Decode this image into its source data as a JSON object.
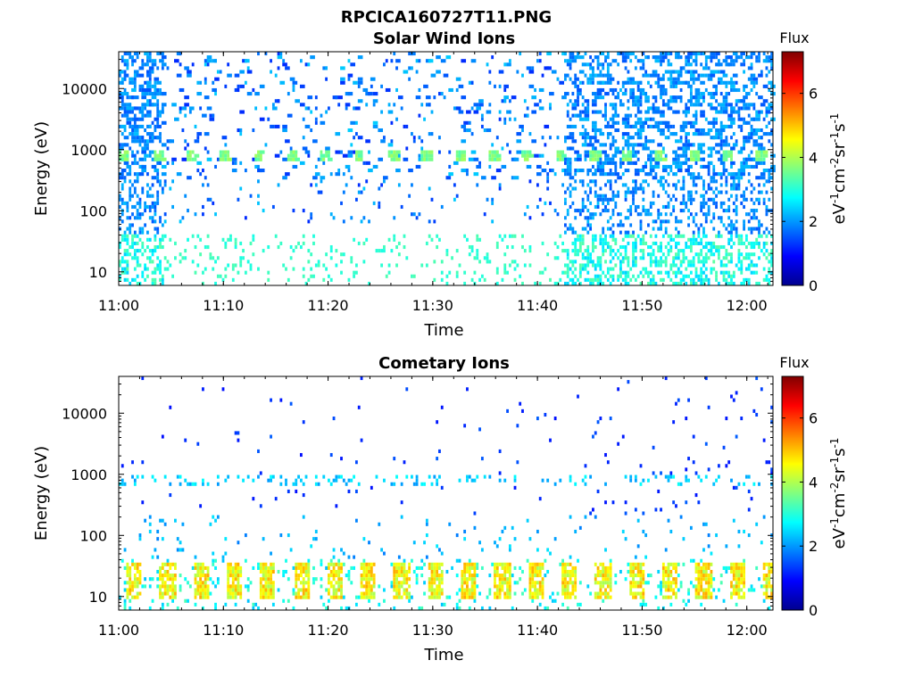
{
  "figure_title": "RPCICA160727T11.PNG",
  "colors": {
    "colormap": [
      "#00008f",
      "#0000ff",
      "#0080ff",
      "#00ffff",
      "#80ff80",
      "#ffff00",
      "#ff8000",
      "#ff0000",
      "#800000"
    ]
  },
  "chart_data": [
    {
      "type": "heatmap",
      "title": "Solar Wind Ions",
      "xlabel": "Time",
      "ylabel": "Energy (eV)",
      "xticks": [
        "11:00",
        "11:10",
        "11:20",
        "11:30",
        "11:40",
        "11:50",
        "12:00"
      ],
      "xlim_minutes": [
        0,
        62.5
      ],
      "yscale": "log",
      "ylim": [
        6,
        40000
      ],
      "yticks": [
        "10",
        "100",
        "1000",
        "10000"
      ],
      "colorbar": {
        "title": "Flux",
        "label": "eV-1cm-2sr-1s-1",
        "range": [
          0,
          7.3
        ],
        "ticks": [
          "0",
          "2",
          "4",
          "6"
        ]
      },
      "features": [
        {
          "desc": "dense coverage across all energies",
          "t_start_min": 0,
          "t_end_min": 4.3,
          "flux": 1.5
        },
        {
          "desc": "dense coverage across all energies",
          "t_start_min": 42.5,
          "t_end_min": 62.5,
          "flux": 1.5
        },
        {
          "desc": "sparse scattered background above 300 eV",
          "t_start_min": 4.3,
          "t_end_min": 42.5,
          "flux": 1.2
        },
        {
          "desc": "periodic peaks near 750 eV",
          "energy_eV": 750,
          "period_min": 3.2,
          "flux": 3.3
        },
        {
          "desc": "low-energy streaks 6-40 eV",
          "energy_range_eV": [
            6,
            40
          ],
          "flux": 2.9
        }
      ]
    },
    {
      "type": "heatmap",
      "title": "Cometary Ions",
      "xlabel": "Time",
      "ylabel": "Energy (eV)",
      "xticks": [
        "11:00",
        "11:10",
        "11:20",
        "11:30",
        "11:40",
        "11:50",
        "12:00"
      ],
      "xlim_minutes": [
        0,
        62.5
      ],
      "yscale": "log",
      "ylim": [
        6,
        40000
      ],
      "yticks": [
        "10",
        "100",
        "1000",
        "10000"
      ],
      "colorbar": {
        "title": "Flux",
        "label": "eV-1cm-2sr-1s-1",
        "range": [
          0,
          7.3
        ],
        "ticks": [
          "0",
          "2",
          "4",
          "6"
        ]
      },
      "features": [
        {
          "desc": "periodic low-energy bursts 10-30 eV",
          "energy_range_eV": [
            10,
            30
          ],
          "period_min": 3.2,
          "flux": 3.9
        },
        {
          "desc": "sparse signal near 750 eV",
          "energy_eV": 750,
          "flux": 2.0
        },
        {
          "desc": "sparse scattered high-energy pixels",
          "flux": 1.0
        }
      ]
    }
  ]
}
